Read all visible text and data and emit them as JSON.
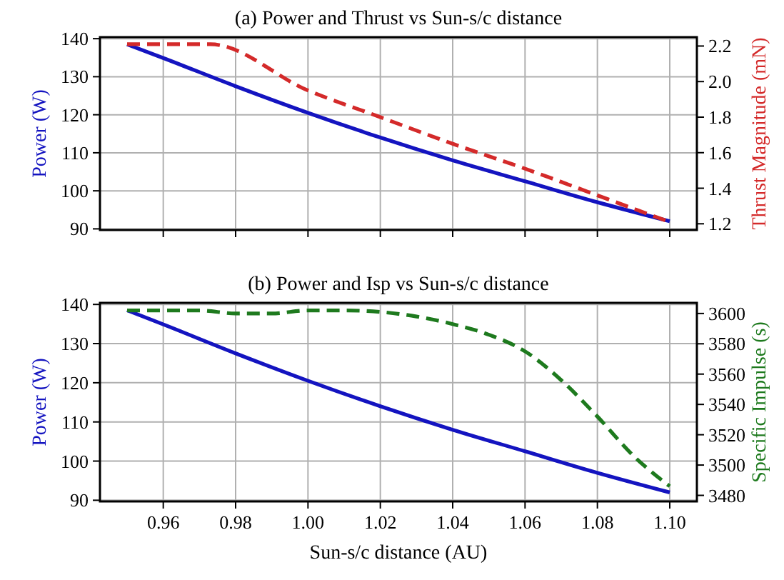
{
  "chart_data": [
    {
      "type": "line",
      "title": "(a) Power and Thrust vs Sun-s/c distance",
      "ylabel": "Power (W)",
      "y2label": "Thrust Magnitude (mN)",
      "xlim": [
        0.9425,
        1.1075
      ],
      "xticks": [
        {
          "value": 0.96,
          "label": null
        },
        {
          "value": 0.98,
          "label": null
        },
        {
          "value": 1.0,
          "label": null
        },
        {
          "value": 1.02,
          "label": null
        },
        {
          "value": 1.04,
          "label": null
        },
        {
          "value": 1.06,
          "label": null
        },
        {
          "value": 1.08,
          "label": null
        },
        {
          "value": 1.1,
          "label": null
        }
      ],
      "ylim": [
        89.7,
        140.4
      ],
      "yticks": [
        90,
        100,
        110,
        120,
        130,
        140
      ],
      "y2lim": [
        1.165,
        2.25
      ],
      "y2ticks": [
        {
          "value": 1.2,
          "label": "1.2"
        },
        {
          "value": 1.4,
          "label": "1.4"
        },
        {
          "value": 1.6,
          "label": "1.6"
        },
        {
          "value": 1.8,
          "label": "1.8"
        },
        {
          "value": 2.0,
          "label": "2.0"
        },
        {
          "value": 2.2,
          "label": "2.2"
        }
      ],
      "tick_labels": "y",
      "grid": true,
      "x": [
        0.95,
        0.96,
        0.98,
        1.0,
        1.02,
        1.04,
        1.06,
        1.08,
        1.1
      ],
      "series": [
        {
          "color": "#1414c0",
          "line_style": "solid",
          "values": [
            138.5,
            134.9,
            127.5,
            120.5,
            114,
            108,
            102.5,
            97,
            92
          ]
        },
        {
          "color": "#d42a2a",
          "line_style": "dashed",
          "axis": "y2",
          "x": [
            0.95,
            0.973,
            1.0,
            1.02,
            1.04,
            1.06,
            1.08,
            1.1
          ],
          "values": [
            2.21,
            2.21,
            1.95,
            1.8,
            1.65,
            1.51,
            1.36,
            1.21
          ]
        }
      ]
    },
    {
      "type": "line",
      "title": "(b) Power and Isp vs Sun-s/c distance",
      "xlabel": "Sun-s/c distance (AU)",
      "ylabel": "Power (W)",
      "y2label": "Specific Impulse (s)",
      "xlim": [
        0.9425,
        1.1075
      ],
      "xticks": [
        {
          "value": 0.96,
          "label": "0.96"
        },
        {
          "value": 0.98,
          "label": "0.98"
        },
        {
          "value": 1.0,
          "label": "1.00"
        },
        {
          "value": 1.02,
          "label": "1.02"
        },
        {
          "value": 1.04,
          "label": "1.04"
        },
        {
          "value": 1.06,
          "label": "1.06"
        },
        {
          "value": 1.08,
          "label": "1.08"
        },
        {
          "value": 1.1,
          "label": "1.10"
        }
      ],
      "ylim": [
        89.7,
        140.4
      ],
      "yticks": [
        90,
        100,
        110,
        120,
        130,
        140
      ],
      "y2lim": [
        3476,
        3607
      ],
      "y2ticks": [
        3480,
        3500,
        3520,
        3540,
        3560,
        3580,
        3600
      ],
      "grid": true,
      "x": [
        0.95,
        0.96,
        0.98,
        1.0,
        1.02,
        1.04,
        1.06,
        1.08,
        1.1
      ],
      "series": [
        {
          "color": "#1414c0",
          "line_style": "solid",
          "values": [
            138.5,
            134.9,
            127.5,
            120.5,
            114,
            108,
            102.5,
            97,
            92
          ]
        },
        {
          "color": "#1e7a1e",
          "line_style": "dashed",
          "axis": "y2",
          "x": [
            0.95,
            0.97,
            0.98,
            0.99,
            1.0,
            1.01,
            1.02,
            1.03,
            1.04,
            1.05,
            1.06,
            1.07,
            1.08,
            1.09,
            1.1
          ],
          "values": [
            3602,
            3602,
            3600,
            3600,
            3602,
            3602,
            3601,
            3598,
            3593,
            3586,
            3575,
            3556,
            3532,
            3506,
            3486
          ]
        }
      ]
    }
  ]
}
